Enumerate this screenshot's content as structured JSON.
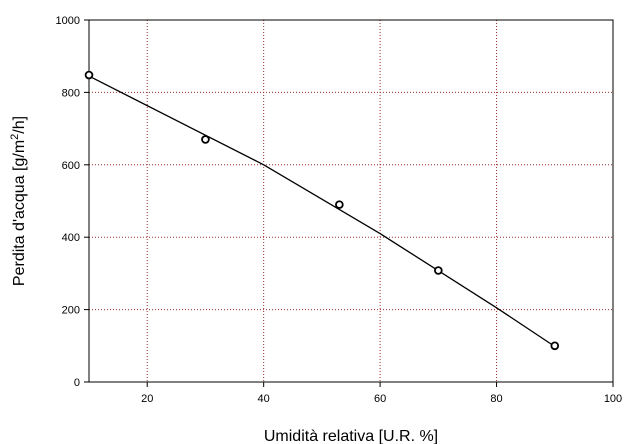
{
  "chart_data": {
    "type": "scatter",
    "xlabel": "Umidità relativa [U.R. %]",
    "ylabel_main": "Perdita d'acqua [g/m",
    "ylabel_sup": "2",
    "ylabel_end": "/h]",
    "xlim": [
      10,
      100
    ],
    "ylim": [
      0,
      1000
    ],
    "x_ticks": [
      20,
      40,
      60,
      80,
      100
    ],
    "y_ticks": [
      0,
      200,
      400,
      600,
      800,
      1000
    ],
    "grid": true,
    "grid_color": "#9b2c2c",
    "series": [
      {
        "x": [
          10,
          30,
          53,
          70,
          90
        ],
        "y": [
          848,
          670,
          490,
          308,
          100
        ],
        "marker": "open-circle"
      }
    ],
    "fit_line": {
      "x": [
        10,
        40,
        60,
        80,
        90
      ],
      "y": [
        845,
        600,
        410,
        205,
        98
      ]
    }
  }
}
